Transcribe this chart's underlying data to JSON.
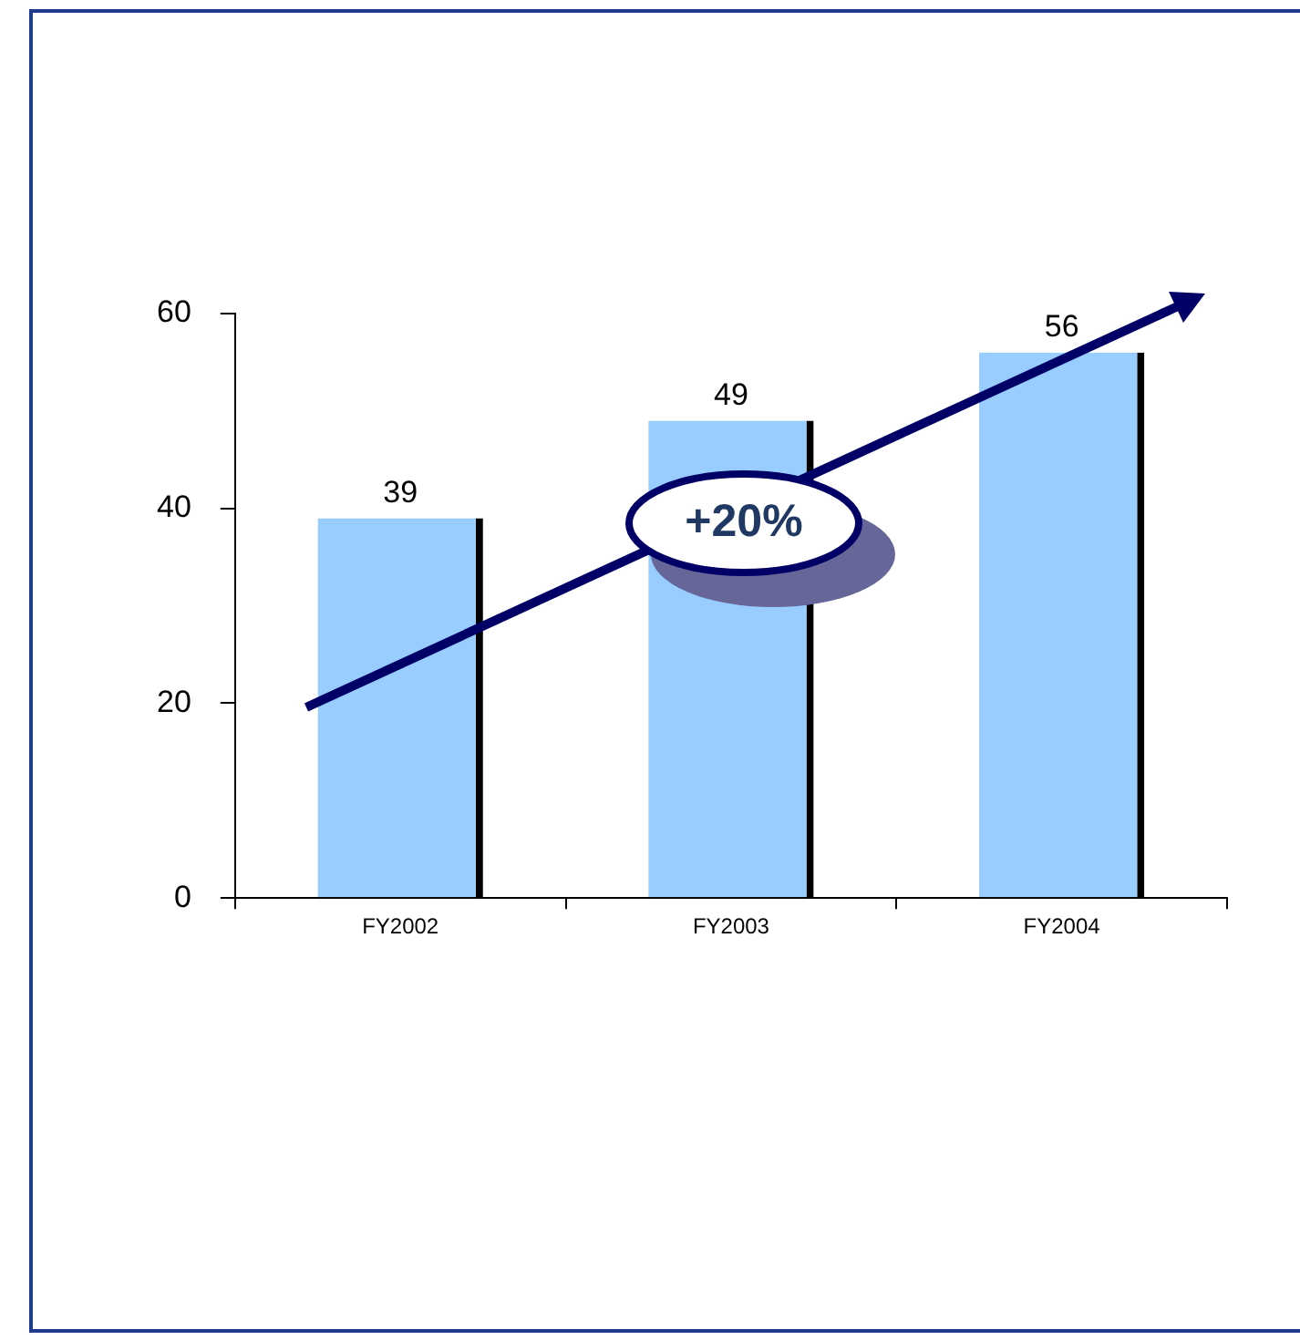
{
  "chart_data": {
    "type": "bar",
    "categories": [
      "FY2002",
      "FY2003",
      "FY2004"
    ],
    "values": [
      39,
      49,
      56
    ],
    "color": "#99ccff",
    "ylim": [
      0,
      60
    ],
    "yticks": [
      0,
      20,
      40,
      60
    ],
    "grid": false,
    "legend": false,
    "data_labels": true,
    "annotations": [
      "+20%"
    ]
  }
}
